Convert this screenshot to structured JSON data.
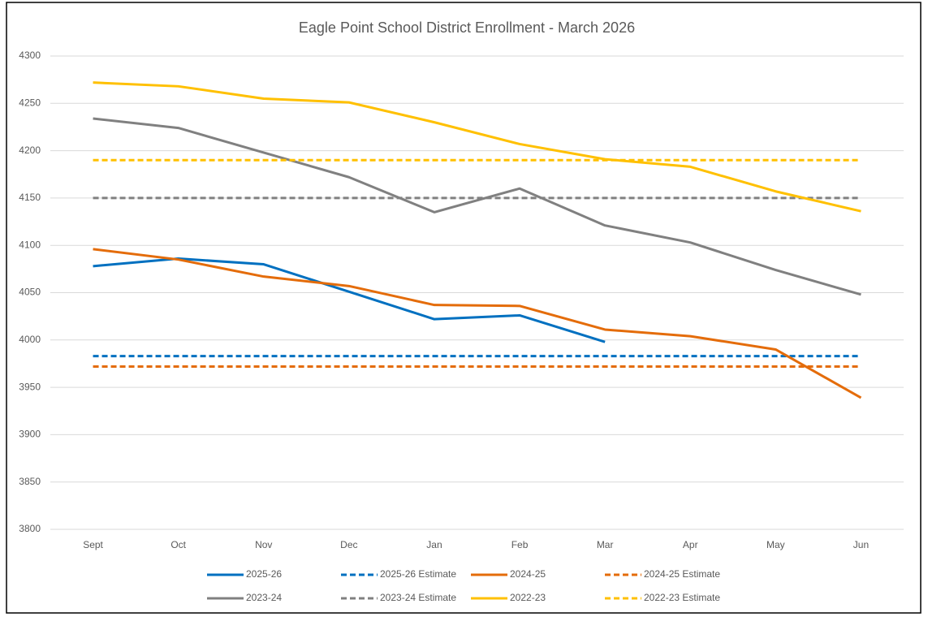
{
  "chart_data": {
    "type": "line",
    "title": "Eagle Point School District Enrollment - March 2026",
    "categories": [
      "Sept",
      "Oct",
      "Nov",
      "Dec",
      "Jan",
      "Feb",
      "Mar",
      "Apr",
      "May",
      "Jun"
    ],
    "ylim": [
      3800,
      4300
    ],
    "yticks": [
      3800,
      3850,
      3900,
      3950,
      4000,
      4050,
      4100,
      4150,
      4200,
      4250,
      4300
    ],
    "grid": true,
    "legend": "bottom",
    "series": [
      {
        "name": "2025-26",
        "color": "#0070c0",
        "dashed": false,
        "values": [
          4078,
          4086,
          4080,
          4051,
          4022,
          4026,
          3998,
          null,
          null,
          null
        ]
      },
      {
        "name": "2025-26 Estimate",
        "color": "#0070c0",
        "dashed": true,
        "values": [
          3983,
          3983,
          3983,
          3983,
          3983,
          3983,
          3983,
          3983,
          3983,
          3983
        ]
      },
      {
        "name": "2024-25",
        "color": "#e46c0a",
        "dashed": false,
        "values": [
          4096,
          4085,
          4067,
          4057,
          4037,
          4036,
          4011,
          4004,
          3990,
          3939
        ]
      },
      {
        "name": "2024-25 Estimate",
        "color": "#e46c0a",
        "dashed": true,
        "values": [
          3972,
          3972,
          3972,
          3972,
          3972,
          3972,
          3972,
          3972,
          3972,
          3972
        ]
      },
      {
        "name": "2023-24",
        "color": "#808080",
        "dashed": false,
        "values": [
          4234,
          4224,
          4198,
          4172,
          4135,
          4160,
          4121,
          4103,
          4074,
          4048
        ]
      },
      {
        "name": "2023-24 Estimate",
        "color": "#808080",
        "dashed": true,
        "values": [
          4150,
          4150,
          4150,
          4150,
          4150,
          4150,
          4150,
          4150,
          4150,
          4150
        ]
      },
      {
        "name": "2022-23",
        "color": "#ffc000",
        "dashed": false,
        "values": [
          4272,
          4268,
          4255,
          4251,
          4230,
          4207,
          4191,
          4183,
          4157,
          4136
        ]
      },
      {
        "name": "2022-23 Estimate",
        "color": "#ffc000",
        "dashed": true,
        "values": [
          4190,
          4190,
          4190,
          4190,
          4190,
          4190,
          4190,
          4190,
          4190,
          4190
        ]
      }
    ]
  }
}
